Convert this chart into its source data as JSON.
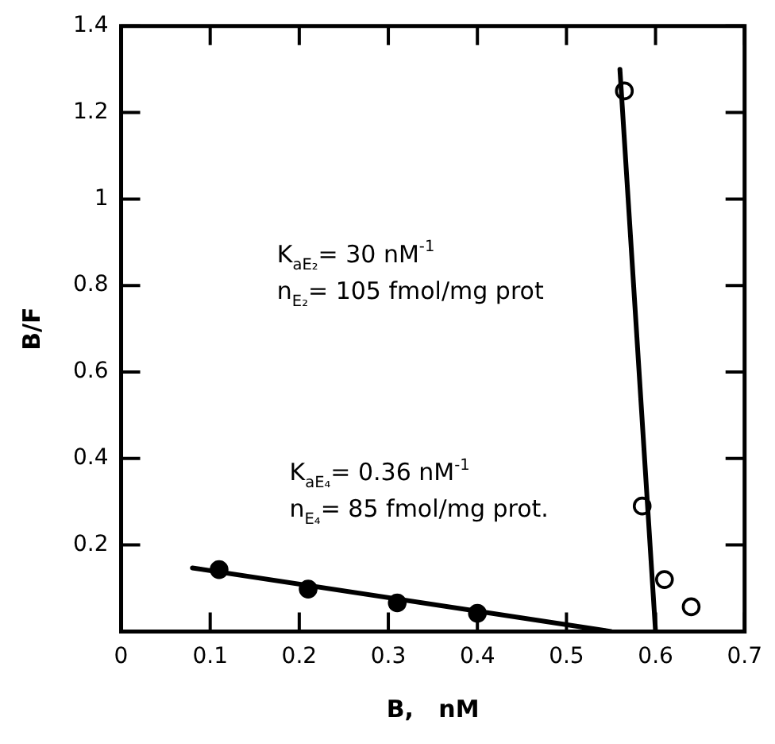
{
  "chart_data": {
    "type": "scatter",
    "xlabel": "B,   nM",
    "ylabel": "B/F",
    "xlim": [
      0,
      0.7
    ],
    "xticks": [
      0,
      0.1,
      0.2,
      0.3,
      0.4,
      0.5,
      0.6,
      0.7
    ],
    "ylim": [
      0,
      1.4
    ],
    "yticks": [
      {
        "value": 0,
        "label": null
      },
      0.2,
      0.4,
      0.6,
      0.8,
      1.0,
      1.2,
      1.4
    ],
    "grid": false,
    "legend": false,
    "series": [
      {
        "type": "line",
        "color": "#000000",
        "marker": "none",
        "x": [
          0.08,
          0.55
        ],
        "values": [
          0.147,
          0
        ]
      },
      {
        "type": "line",
        "color": "#000000",
        "marker": "none",
        "x": [
          0.56,
          0.6
        ],
        "values": [
          1.3,
          0
        ]
      },
      {
        "type": "scatter",
        "color": "#000000",
        "marker": "circle",
        "x": [
          0.11,
          0.21,
          0.31,
          0.4
        ],
        "values": [
          0.143,
          0.098,
          0.066,
          0.042
        ]
      },
      {
        "type": "scatter",
        "color": "#ffffff",
        "marker": "circle",
        "x": [
          0.565,
          0.585,
          0.61,
          0.64
        ],
        "values": [
          1.25,
          0.29,
          0.12,
          0.057
        ]
      }
    ],
    "annotations": [
      "K$_{aE₂}$= 30 nM$^{-1}$",
      "n$_{E₂}$= 105 fmol/mg prot",
      "K$_{aE₄}$= 0.36 nM$^{-1}$",
      "n$_{E₄}$= 85 fmol/mg prot."
    ]
  }
}
